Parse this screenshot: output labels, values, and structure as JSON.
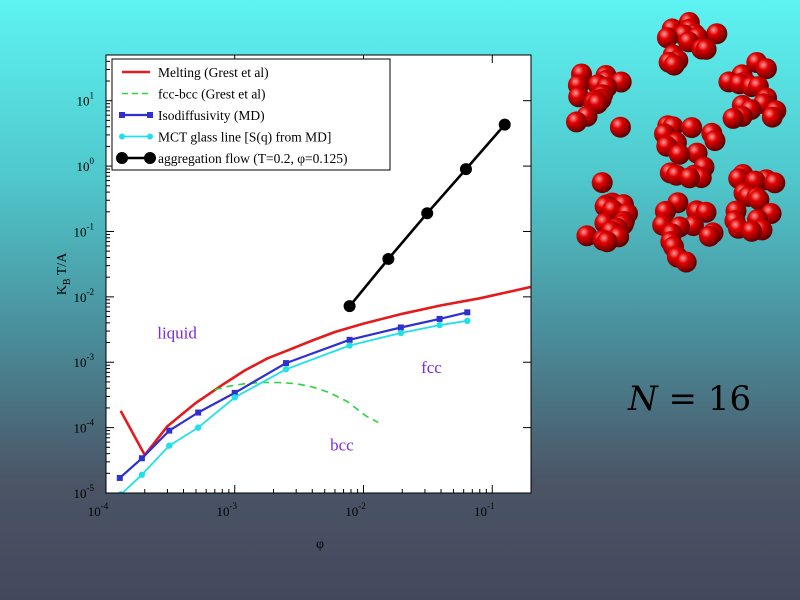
{
  "n_label": {
    "prefix": "N",
    "eq": " = ",
    "value": "16"
  },
  "colors": {
    "melting": "#e41a1c",
    "fccbcc": "#2fd33a",
    "isodiff": "#3030d0",
    "mct": "#20e0e8",
    "aggregation": "#000000",
    "region_text": "#7a2be0",
    "particle": "#e00000"
  },
  "chart_data": {
    "type": "line",
    "xscale": "log",
    "yscale": "log",
    "xlim": [
      0.0001,
      0.2
    ],
    "ylim": [
      1e-05,
      50
    ],
    "xlabel": "φ",
    "ylabel": "K_B T/A",
    "x_ticks": [
      {
        "value": 0.0001,
        "base": "10",
        "exp": "-4"
      },
      {
        "value": 0.001,
        "base": "10",
        "exp": "-3"
      },
      {
        "value": 0.01,
        "base": "10",
        "exp": "-2"
      },
      {
        "value": 0.1,
        "base": "10",
        "exp": "-1"
      }
    ],
    "y_ticks": [
      {
        "value": 1e-05,
        "base": "10",
        "exp": "-5"
      },
      {
        "value": 0.0001,
        "base": "10",
        "exp": "-4"
      },
      {
        "value": 0.001,
        "base": "10",
        "exp": "-3"
      },
      {
        "value": 0.01,
        "base": "10",
        "exp": "-2"
      },
      {
        "value": 0.1,
        "base": "10",
        "exp": "-1"
      },
      {
        "value": 1,
        "base": "10",
        "exp": "0"
      },
      {
        "value": 10,
        "base": "10",
        "exp": "1"
      }
    ],
    "legend_position": "top-left",
    "series": [
      {
        "name": "Melting  (Grest et al)",
        "key": "melting",
        "style": "solid",
        "marker": "none",
        "x": [
          0.00013,
          0.0002,
          0.0003,
          0.0005,
          0.0008,
          0.0012,
          0.0018,
          0.0025,
          0.004,
          0.006,
          0.01,
          0.02,
          0.04,
          0.08,
          0.2
        ],
        "y": [
          0.00018,
          3.8e-05,
          0.000105,
          0.00024,
          0.00045,
          0.00075,
          0.00115,
          0.00148,
          0.00215,
          0.0029,
          0.0039,
          0.0055,
          0.0074,
          0.0095,
          0.0142
        ]
      },
      {
        "name": "fcc-bcc (Grest et al)",
        "key": "fccbcc",
        "style": "dashed",
        "marker": "none",
        "x": [
          0.0007,
          0.0009,
          0.0012,
          0.0016,
          0.0022,
          0.003,
          0.004,
          0.0055,
          0.0075,
          0.0105,
          0.013
        ],
        "y": [
          0.00038,
          0.00043,
          0.00047,
          0.00049,
          0.00049,
          0.00047,
          0.00042,
          0.00034,
          0.00025,
          0.00015,
          0.00012
        ]
      },
      {
        "name": "Isodiffusivity (MD)",
        "key": "isodiff",
        "style": "solid",
        "marker": "square",
        "x": [
          0.000128,
          0.00019,
          0.00031,
          0.00052,
          0.001,
          0.0025,
          0.0078,
          0.0195,
          0.039,
          0.064
        ],
        "y": [
          1.7e-05,
          3.4e-05,
          9e-05,
          0.00017,
          0.00034,
          0.00097,
          0.0022,
          0.0034,
          0.0046,
          0.0058
        ]
      },
      {
        "name": "MCT glass line [S(q) from MD]",
        "key": "mct",
        "style": "solid",
        "marker": "circle",
        "x": [
          0.00013,
          0.00019,
          0.00031,
          0.00052,
          0.001,
          0.0025,
          0.0078,
          0.0195,
          0.039,
          0.064
        ],
        "y": [
          9.5e-06,
          1.9e-05,
          5.3e-05,
          0.0001,
          0.00029,
          0.00078,
          0.0018,
          0.0028,
          0.0037,
          0.0043
        ]
      },
      {
        "name": "aggregation flow (T=0.2, φ=0.125)",
        "key": "aggregation",
        "style": "solid",
        "marker": "bigcircle",
        "x": [
          0.0078,
          0.0156,
          0.03125,
          0.0625,
          0.125
        ],
        "y": [
          0.0072,
          0.038,
          0.19,
          0.9,
          4.3
        ]
      }
    ],
    "annotations": [
      {
        "text": "liquid",
        "x": 0.00025,
        "y": 0.0023
      },
      {
        "text": "fcc",
        "x": 0.028,
        "y": 0.00068
      },
      {
        "text": "bcc",
        "x": 0.0055,
        "y": 4.5e-05
      }
    ]
  }
}
